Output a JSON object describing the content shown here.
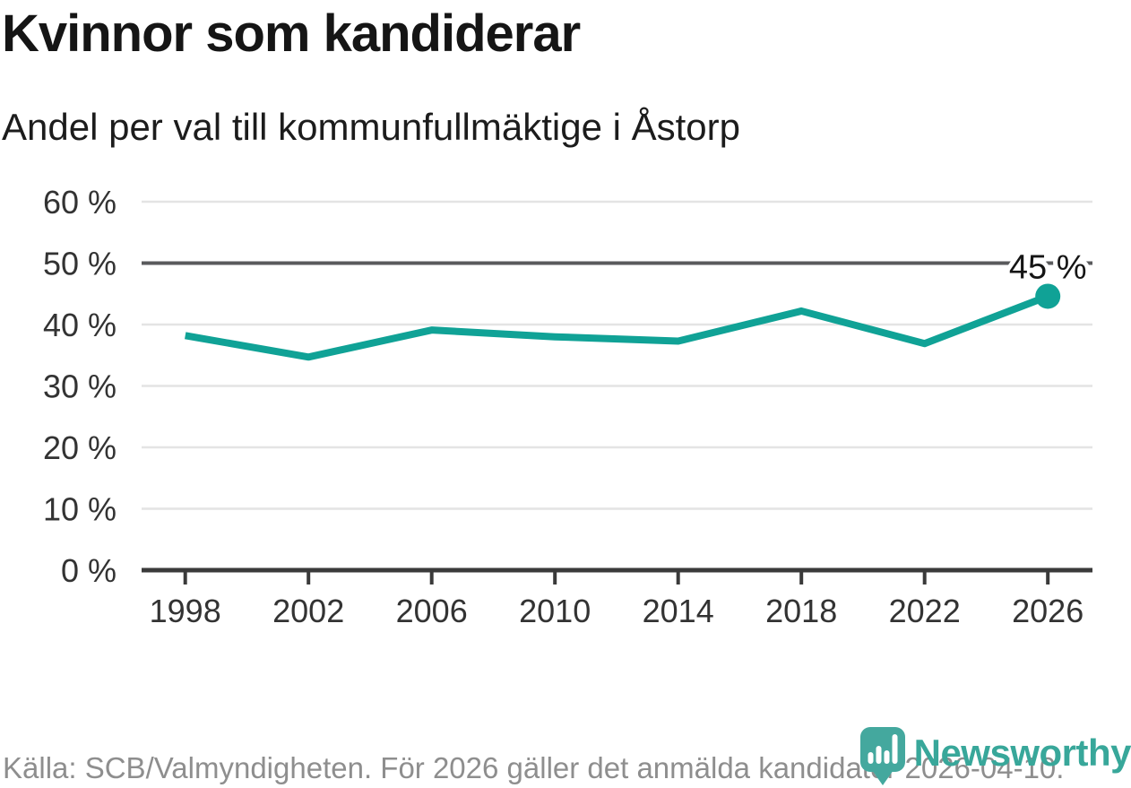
{
  "header": {
    "title": "Kvinnor som kandiderar",
    "subtitle": "Andel per val till kommunfullmäktige i Åstorp"
  },
  "footer": {
    "source": "Källa: SCB/Valmyndigheten. För 2026 gäller det anmälda kandidater 2026-04-10.",
    "brand": "Newsworthy"
  },
  "colors": {
    "line": "#10a296",
    "reference_line": "#595a5c",
    "grid": "#e4e4e4",
    "axis": "#3a3a3a",
    "tick_label": "#333333",
    "title": "#151515",
    "footer_text": "#8e8e8e",
    "brand_teal": "#44a89e"
  },
  "icons": {
    "brand_logo": "newsworthy-pin-bar-chart-icon"
  },
  "chart_data": {
    "type": "line",
    "title": "Kvinnor som kandiderar",
    "subtitle": "Andel per val till kommunfullmäktige i Åstorp",
    "categories": [
      1998,
      2002,
      2006,
      2010,
      2014,
      2018,
      2022,
      2026
    ],
    "values": [
      38.2,
      34.7,
      39.1,
      38.0,
      37.3,
      42.2,
      36.9,
      44.6
    ],
    "end_label": "45 %",
    "xlabel": "",
    "ylabel": "",
    "ylim": [
      0,
      60
    ],
    "y_ticks": [
      {
        "value": 0,
        "label": "0 %"
      },
      {
        "value": 10,
        "label": "10 %"
      },
      {
        "value": 20,
        "label": "20 %"
      },
      {
        "value": 30,
        "label": "30 %"
      },
      {
        "value": 40,
        "label": "40 %"
      },
      {
        "value": 50,
        "label": "50 %"
      },
      {
        "value": 60,
        "label": "60 %"
      }
    ],
    "reference_line": 50,
    "grid": true,
    "legend": "none",
    "marker_last_point": true
  }
}
